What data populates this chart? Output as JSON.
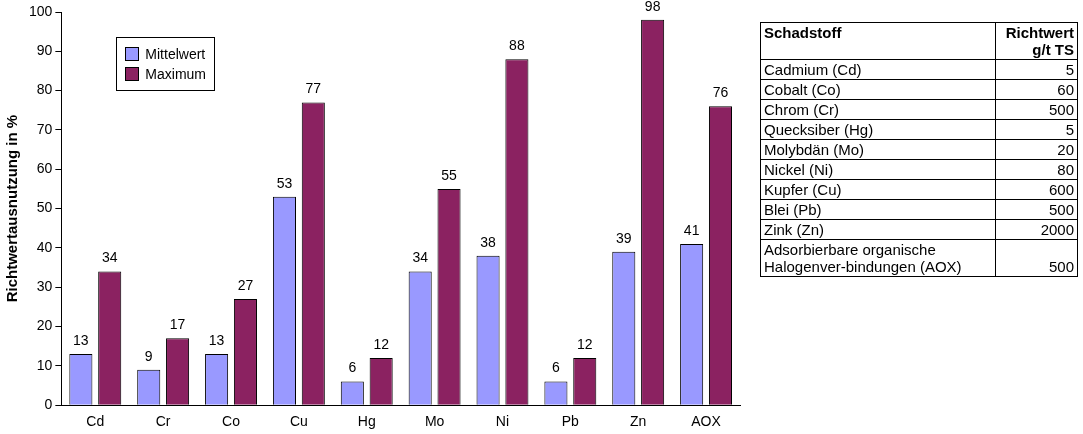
{
  "chart_data": [
    {
      "type": "bar",
      "ylabel": "Richtwertausnutzung in %",
      "categories": [
        "Cd",
        "Cr",
        "Co",
        "Cu",
        "Hg",
        "Mo",
        "Ni",
        "Pb",
        "Zn",
        "AOX"
      ],
      "series": [
        {
          "name": "Mittelwert",
          "color": "#9999ff",
          "values": [
            13,
            9,
            13,
            53,
            6,
            34,
            38,
            6,
            39,
            41
          ]
        },
        {
          "name": "Maximum",
          "color": "#8b2261",
          "values": [
            34,
            17,
            27,
            77,
            12,
            55,
            88,
            12,
            98,
            76
          ]
        }
      ],
      "ylim": [
        0,
        100
      ],
      "yticks": [
        0,
        10,
        20,
        30,
        40,
        50,
        60,
        70,
        80,
        90,
        100
      ],
      "grid": false,
      "legend": "top left",
      "data_labels": true
    },
    {
      "type": "other",
      "xlabel": "Schadstoff",
      "ylabel": "Richtwert g/t TS",
      "categories": [
        "Cadmium (Cd)",
        "Cobalt (Co)",
        "Chrom (Cr)",
        "Quecksiber (Hg)",
        "Molybdän (Mo)",
        "Nickel (Ni)",
        "Kupfer (Cu)",
        "Blei (Pb)",
        "Zink (Zn)",
        "Adsorbierbare organische Halogenver-bindungen (AOX)"
      ],
      "values": [
        5,
        60,
        500,
        5,
        20,
        80,
        600,
        500,
        2000,
        500
      ],
      "data_labels": true
    }
  ]
}
